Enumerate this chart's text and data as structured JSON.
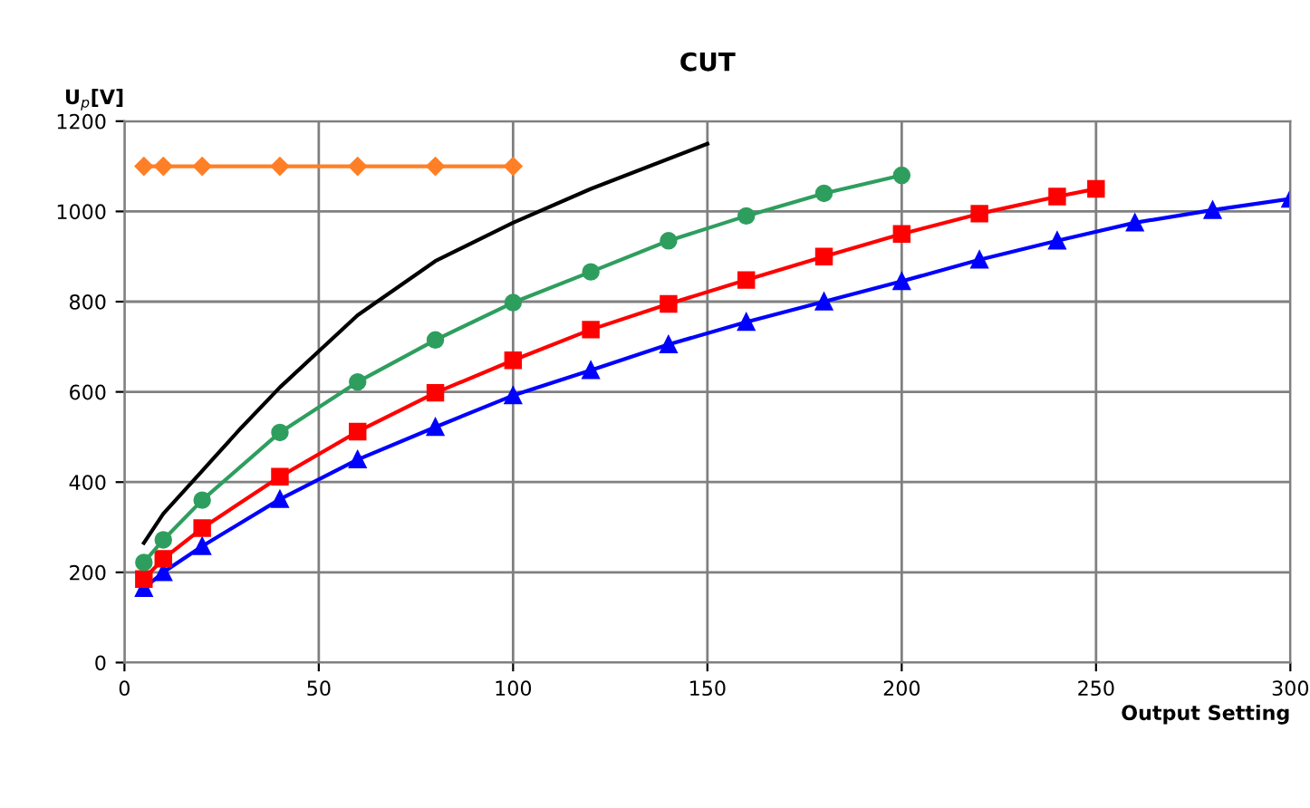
{
  "chart_data": {
    "type": "line",
    "title": "CUT",
    "xlabel": "Output Setting",
    "ylabel": "U$_{p}$[V]",
    "xlim": [
      0,
      300
    ],
    "ylim": [
      0,
      1200
    ],
    "xticks": [
      0,
      50,
      100,
      150,
      200,
      250,
      300
    ],
    "yticks": [
      0,
      200,
      400,
      600,
      800,
      1000,
      1200
    ],
    "grid": true,
    "series": [
      {
        "color": "#0000ff",
        "marker": "triangle",
        "x": [
          5,
          10,
          20,
          40,
          60,
          80,
          100,
          120,
          140,
          160,
          180,
          200,
          220,
          240,
          260,
          280,
          300
        ],
        "values": [
          165,
          200,
          258,
          362,
          450,
          522,
          592,
          648,
          705,
          755,
          800,
          845,
          893,
          935,
          975,
          1003,
          1028
        ]
      },
      {
        "color": "#ff0000",
        "marker": "square",
        "x": [
          5,
          10,
          20,
          40,
          60,
          80,
          100,
          120,
          140,
          160,
          180,
          200,
          220,
          240,
          250
        ],
        "values": [
          185,
          230,
          298,
          412,
          512,
          598,
          670,
          738,
          795,
          848,
          900,
          950,
          995,
          1033,
          1050
        ]
      },
      {
        "color": "#2e9e5e",
        "marker": "circle",
        "x": [
          5,
          10,
          20,
          40,
          60,
          80,
          100,
          120,
          140,
          160,
          180,
          200
        ],
        "values": [
          222,
          272,
          360,
          510,
          622,
          715,
          798,
          866,
          935,
          990,
          1040,
          1080
        ]
      },
      {
        "color": "#000000",
        "marker": "none",
        "x": [
          5,
          10,
          20,
          30,
          40,
          50,
          60,
          80,
          100,
          120,
          150
        ],
        "values": [
          265,
          330,
          425,
          520,
          610,
          690,
          770,
          890,
          975,
          1050,
          1150
        ]
      },
      {
        "color": "#ff7f27",
        "marker": "diamond",
        "x": [
          5,
          10,
          20,
          40,
          60,
          80,
          100
        ],
        "values": [
          1100,
          1100,
          1100,
          1100,
          1100,
          1100,
          1100
        ]
      }
    ]
  }
}
